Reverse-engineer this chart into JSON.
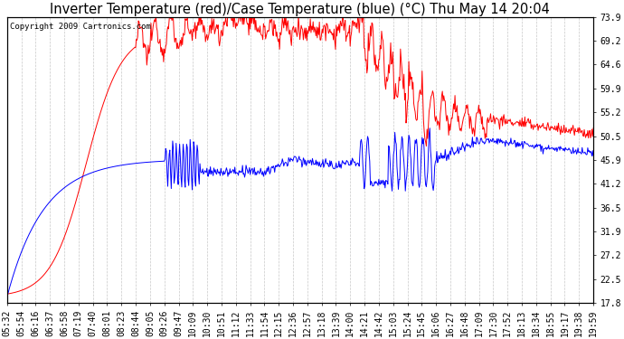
{
  "title": "Inverter Temperature (red)/Case Temperature (blue) (°C) Thu May 14 20:04",
  "copyright": "Copyright 2009 Cartronics.com",
  "ylabel_right": [
    "73.9",
    "69.2",
    "64.6",
    "59.9",
    "55.2",
    "50.5",
    "45.9",
    "41.2",
    "36.5",
    "31.9",
    "27.2",
    "22.5",
    "17.8"
  ],
  "ytick_values": [
    73.9,
    69.2,
    64.6,
    59.9,
    55.2,
    50.5,
    45.9,
    41.2,
    36.5,
    31.9,
    27.2,
    22.5,
    17.8
  ],
  "ylim": [
    17.8,
    73.9
  ],
  "x_labels": [
    "05:32",
    "05:54",
    "06:16",
    "06:37",
    "06:58",
    "07:19",
    "07:40",
    "08:01",
    "08:23",
    "08:44",
    "09:05",
    "09:26",
    "09:47",
    "10:09",
    "10:30",
    "10:51",
    "11:12",
    "11:33",
    "11:54",
    "12:15",
    "12:36",
    "12:57",
    "13:18",
    "13:39",
    "14:00",
    "14:21",
    "14:42",
    "15:03",
    "15:24",
    "15:45",
    "16:06",
    "16:27",
    "16:48",
    "17:09",
    "17:30",
    "17:52",
    "18:13",
    "18:34",
    "18:55",
    "19:17",
    "19:38",
    "19:59"
  ],
  "bg_color": "#ffffff",
  "plot_bg_color": "#ffffff",
  "grid_color": "#c8c8c8",
  "red_color": "#ff0000",
  "blue_color": "#0000ff",
  "title_fontsize": 10.5,
  "tick_fontsize": 7,
  "copyright_fontsize": 6.5
}
